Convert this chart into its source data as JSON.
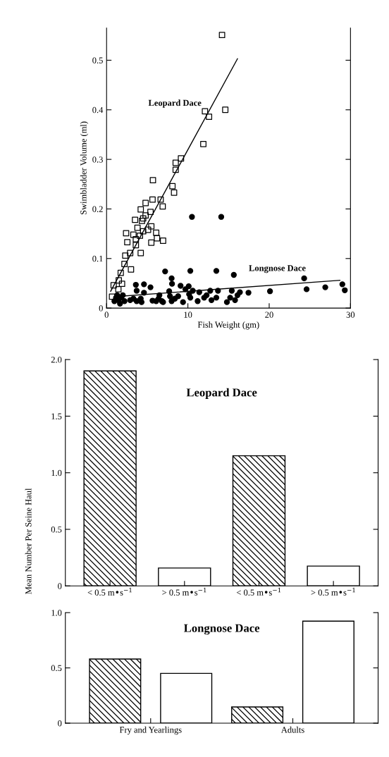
{
  "chart_data": [
    {
      "type": "scatter",
      "xlabel": "Fish Weight (gm)",
      "ylabel": "Swimbladder Volume (ml)",
      "xlim": [
        0,
        30
      ],
      "ylim": [
        0,
        0.565
      ],
      "xticks": [
        0,
        10,
        20,
        30
      ],
      "yticks": [
        {
          "value": 0,
          "label": "0"
        },
        0.1,
        0.2,
        0.3,
        0.4,
        0.5
      ],
      "grid": false,
      "legend": false,
      "annotations": [
        "Leopard Dace",
        "Longnose Dace"
      ],
      "series": [
        {
          "type": "scatter",
          "marker": "square",
          "color": "#000000",
          "x": [
            0.67,
            0.87,
            1.45,
            1.5,
            1.74,
            1.9,
            2.2,
            2.3,
            2.4,
            2.55,
            2.9,
            3.0,
            3.3,
            3.5,
            3.6,
            3.6,
            3.8,
            4.1,
            4.2,
            4.2,
            4.35,
            4.5,
            4.5,
            4.8,
            4.8,
            5.1,
            5.4,
            5.5,
            5.5,
            5.65,
            5.7,
            6.1,
            6.2,
            6.65,
            6.9,
            6.95,
            8.1,
            8.3,
            8.5,
            8.5,
            9.15,
            11.9,
            12.1,
            12.6,
            14.6,
            14.2
          ],
          "values": [
            0.023,
            0.046,
            0.038,
            0.056,
            0.071,
            0.049,
            0.089,
            0.106,
            0.151,
            0.133,
            0.111,
            0.078,
            0.148,
            0.178,
            0.139,
            0.127,
            0.162,
            0.146,
            0.111,
            0.199,
            0.176,
            0.181,
            0.155,
            0.212,
            0.187,
            0.158,
            0.194,
            0.165,
            0.132,
            0.219,
            0.258,
            0.152,
            0.141,
            0.219,
            0.205,
            0.136,
            0.246,
            0.233,
            0.293,
            0.279,
            0.302,
            0.331,
            0.397,
            0.386,
            0.4,
            0.551
          ]
        },
        {
          "type": "scatter",
          "marker": "circle",
          "color": "#000000",
          "x": [
            0.96,
            1.16,
            1.3,
            1.45,
            1.65,
            1.8,
            2.0,
            2.2,
            2.9,
            3.3,
            3.6,
            3.7,
            3.7,
            4.2,
            4.3,
            4.6,
            4.6,
            5.4,
            5.65,
            6.1,
            6.4,
            6.5,
            6.8,
            6.95,
            7.2,
            7.7,
            7.8,
            8.0,
            8.0,
            8.05,
            8.4,
            8.8,
            9.1,
            9.4,
            9.7,
            10.1,
            10.15,
            10.3,
            10.3,
            10.5,
            10.6,
            11.2,
            11.4,
            12.0,
            12.3,
            12.75,
            12.9,
            13.5,
            13.5,
            13.7,
            14.1,
            14.8,
            15.2,
            15.4,
            15.65,
            15.8,
            16.1,
            16.4,
            17.45,
            20.1,
            24.3,
            24.6,
            26.9,
            29.0,
            29.3
          ],
          "values": [
            0.014,
            0.021,
            0.026,
            0.016,
            0.009,
            0.021,
            0.026,
            0.014,
            0.016,
            0.019,
            0.047,
            0.035,
            0.014,
            0.019,
            0.012,
            0.031,
            0.048,
            0.042,
            0.015,
            0.014,
            0.019,
            0.026,
            0.014,
            0.012,
            0.074,
            0.034,
            0.024,
            0.014,
            0.06,
            0.049,
            0.019,
            0.024,
            0.045,
            0.012,
            0.038,
            0.044,
            0.028,
            0.075,
            0.021,
            0.184,
            0.035,
            0.014,
            0.032,
            0.021,
            0.026,
            0.035,
            0.016,
            0.075,
            0.021,
            0.035,
            0.184,
            0.012,
            0.021,
            0.035,
            0.067,
            0.016,
            0.026,
            0.032,
            0.031,
            0.034,
            0.06,
            0.038,
            0.042,
            0.048,
            0.036
          ]
        },
        {
          "type": "line",
          "line_style": "solid",
          "color": "#000000",
          "x": [
            0.5,
            16.1
          ],
          "values": [
            0.034,
            0.503
          ]
        },
        {
          "type": "line",
          "line_style": "solid",
          "color": "#000000",
          "x": [
            1.8,
            28.7
          ],
          "values": [
            0.024,
            0.056
          ]
        }
      ]
    },
    {
      "type": "bar",
      "title": "Leopard Dace",
      "ylabel": "Mean Number Per Seine Haul",
      "categories": [
        "< 0.5 m•s$^{−1}$",
        "> 0.5 m•s$^{−1}$",
        "< 0.5 m•s$^{−1}$",
        "> 0.5 m•s$^{−1}$"
      ],
      "ylim": [
        0,
        2.0
      ],
      "yticks": [
        {
          "value": 0,
          "label": "0"
        },
        0.5,
        {
          "value": 1,
          "label": "1.0"
        },
        1.5,
        {
          "value": 2,
          "label": "2.0"
        }
      ],
      "grid": false,
      "legend": false,
      "stacked": true,
      "series": [
        {
          "color": "#000000",
          "values": [
            1.9,
            null,
            1.15,
            null
          ]
        },
        {
          "color": "#000000",
          "values": [
            null,
            0.158,
            null,
            0.175
          ]
        }
      ]
    },
    {
      "type": "bar",
      "title": "Longnose Dace",
      "categories": [
        "Fry and Yearlings",
        "Adults"
      ],
      "ylim": [
        0,
        1.0
      ],
      "yticks": [
        {
          "value": 0,
          "label": "0"
        },
        0.5,
        {
          "value": 1,
          "label": "1.0"
        }
      ],
      "grid": false,
      "legend": false,
      "series": [
        {
          "color": "#000000",
          "values": [
            0.58,
            0.147
          ]
        },
        {
          "color": "#000000",
          "values": [
            0.45,
            0.923
          ]
        }
      ]
    }
  ]
}
